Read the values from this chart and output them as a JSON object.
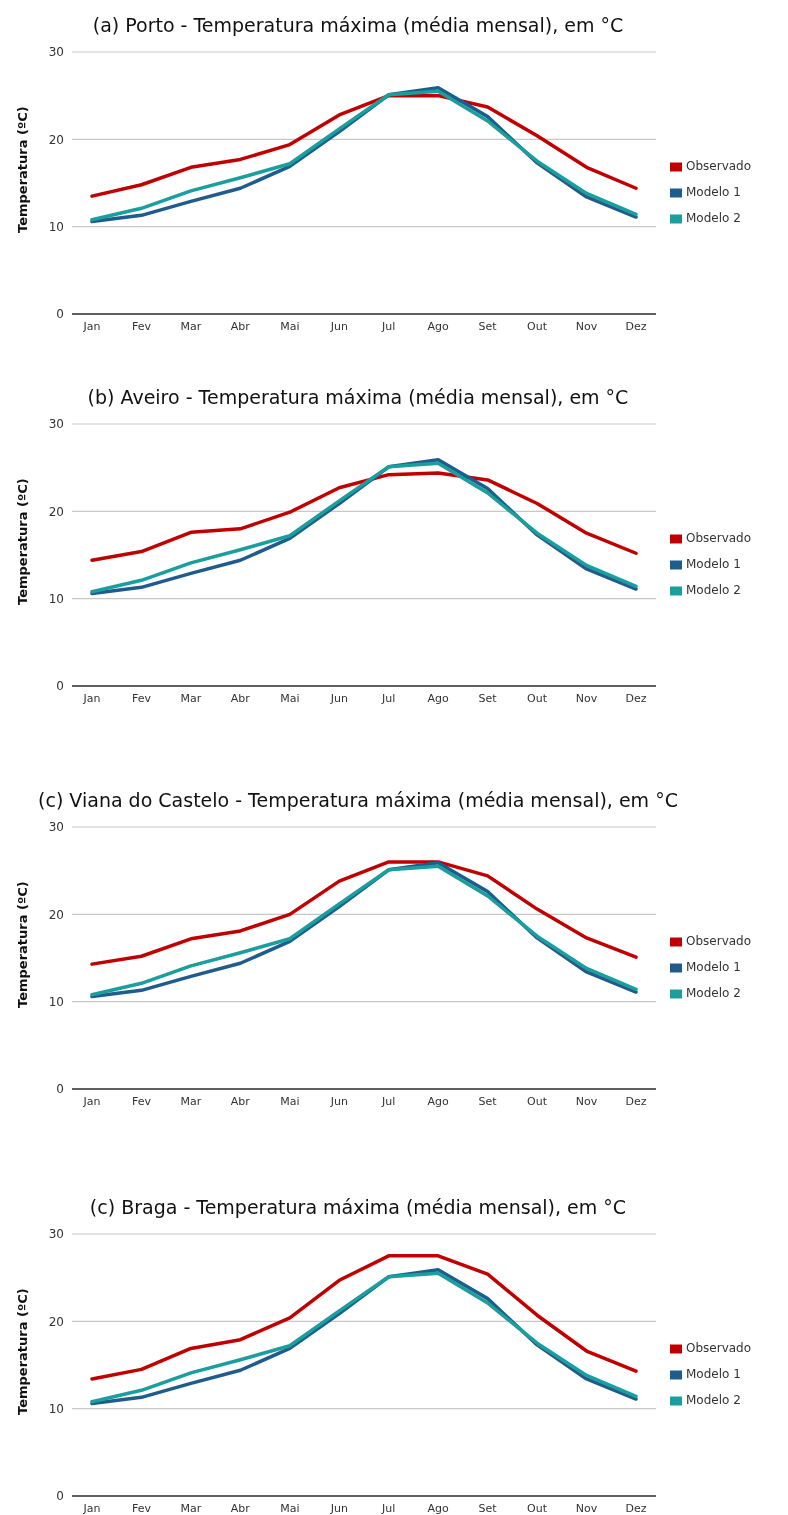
{
  "chart_data": [
    {
      "type": "line",
      "title": "(a) Porto - Temperatura máxima (média mensal), em °C",
      "ylabel": "Temperatura (ºC)",
      "categories": [
        "Jan",
        "Fev",
        "Mar",
        "Abr",
        "Mai",
        "Jun",
        "Jul",
        "Ago",
        "Set",
        "Out",
        "Nov",
        "Dez"
      ],
      "ylim": [
        0,
        30
      ],
      "yticks": [
        0,
        10,
        20,
        30
      ],
      "grid": "y",
      "legend": "right",
      "marker": "none",
      "series": [
        {
          "name": "Observado",
          "color": "#c00000",
          "values": [
            13.5,
            14.8,
            16.8,
            17.7,
            19.4,
            22.8,
            25.0,
            25.0,
            23.7,
            20.4,
            16.8,
            14.4
          ]
        },
        {
          "name": "Modelo 1",
          "color": "#1f5c8b",
          "values": [
            10.6,
            11.3,
            12.9,
            14.4,
            16.9,
            20.9,
            25.1,
            25.9,
            22.6,
            17.3,
            13.4,
            11.1
          ]
        },
        {
          "name": "Modelo 2",
          "color": "#1a9e9e",
          "values": [
            10.8,
            12.1,
            14.1,
            15.6,
            17.2,
            21.2,
            25.1,
            25.5,
            22.1,
            17.5,
            13.8,
            11.4
          ]
        }
      ]
    },
    {
      "type": "line",
      "title": "(b) Aveiro - Temperatura máxima (média mensal), em °C",
      "ylabel": "Temperatura (ºC)",
      "categories": [
        "Jan",
        "Fev",
        "Mar",
        "Abr",
        "Mai",
        "Jun",
        "Jul",
        "Ago",
        "Set",
        "Out",
        "Nov",
        "Dez"
      ],
      "ylim": [
        0,
        30
      ],
      "yticks": [
        0,
        10,
        20,
        30
      ],
      "grid": "y",
      "legend": "right",
      "marker": "none",
      "series": [
        {
          "name": "Observado",
          "color": "#c00000",
          "values": [
            14.4,
            15.4,
            17.6,
            18.0,
            19.9,
            22.7,
            24.2,
            24.4,
            23.6,
            20.9,
            17.5,
            15.2
          ]
        },
        {
          "name": "Modelo 1",
          "color": "#1f5c8b",
          "values": [
            10.6,
            11.3,
            12.9,
            14.4,
            16.9,
            20.9,
            25.1,
            25.9,
            22.6,
            17.3,
            13.4,
            11.1
          ]
        },
        {
          "name": "Modelo 2",
          "color": "#1a9e9e",
          "values": [
            10.8,
            12.1,
            14.1,
            15.6,
            17.2,
            21.2,
            25.1,
            25.5,
            22.1,
            17.5,
            13.8,
            11.4
          ]
        }
      ]
    },
    {
      "type": "line",
      "title": "(c) Viana do Castelo - Temperatura máxima (média mensal), em °C",
      "ylabel": "Temperatura (ºC)",
      "categories": [
        "Jan",
        "Fev",
        "Mar",
        "Abr",
        "Mai",
        "Jun",
        "Jul",
        "Ago",
        "Set",
        "Out",
        "Nov",
        "Dez"
      ],
      "ylim": [
        0,
        30
      ],
      "yticks": [
        0,
        10,
        20,
        30
      ],
      "grid": "y",
      "legend": "right",
      "marker": "none",
      "series": [
        {
          "name": "Observado",
          "color": "#c00000",
          "values": [
            14.3,
            15.2,
            17.2,
            18.1,
            20.0,
            23.8,
            26.0,
            26.0,
            24.4,
            20.6,
            17.3,
            15.1
          ]
        },
        {
          "name": "Modelo 1",
          "color": "#1f5c8b",
          "values": [
            10.6,
            11.3,
            12.9,
            14.4,
            16.9,
            20.9,
            25.1,
            25.9,
            22.6,
            17.3,
            13.4,
            11.1
          ]
        },
        {
          "name": "Modelo 2",
          "color": "#1a9e9e",
          "values": [
            10.8,
            12.1,
            14.1,
            15.6,
            17.2,
            21.2,
            25.1,
            25.5,
            22.1,
            17.5,
            13.8,
            11.4
          ]
        }
      ]
    },
    {
      "type": "line",
      "title": "(c) Braga - Temperatura máxima (média mensal), em °C",
      "ylabel": "Temperatura (ºC)",
      "categories": [
        "Jan",
        "Fev",
        "Mar",
        "Abr",
        "Mai",
        "Jun",
        "Jul",
        "Ago",
        "Set",
        "Out",
        "Nov",
        "Dez"
      ],
      "ylim": [
        0,
        30
      ],
      "yticks": [
        0,
        10,
        20,
        30
      ],
      "grid": "y",
      "legend": "right",
      "marker": "none",
      "series": [
        {
          "name": "Observado",
          "color": "#c00000",
          "values": [
            13.4,
            14.5,
            16.9,
            17.9,
            20.4,
            24.7,
            27.5,
            27.5,
            25.4,
            20.7,
            16.6,
            14.3
          ]
        },
        {
          "name": "Modelo 1",
          "color": "#1f5c8b",
          "values": [
            10.6,
            11.3,
            12.9,
            14.4,
            16.9,
            20.9,
            25.1,
            25.9,
            22.6,
            17.3,
            13.4,
            11.1
          ]
        },
        {
          "name": "Modelo 2",
          "color": "#1a9e9e",
          "values": [
            10.8,
            12.1,
            14.1,
            15.6,
            17.2,
            21.2,
            25.1,
            25.5,
            22.1,
            17.5,
            13.8,
            11.4
          ]
        }
      ]
    }
  ]
}
